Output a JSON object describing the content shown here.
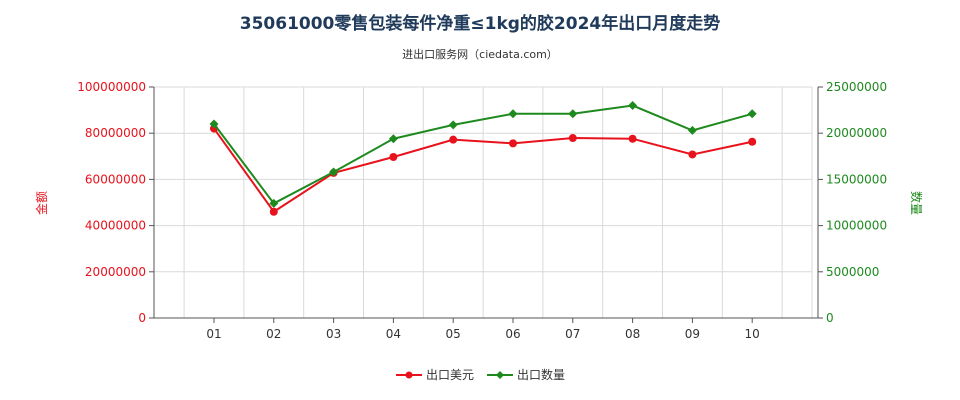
{
  "chart_data": {
    "type": "line",
    "title": "35061000零售包装每件净重≤1kg的胶2024年出口月度走势",
    "subtitle": "进出口服务网（ciedata.com）",
    "categories": [
      "01",
      "02",
      "03",
      "04",
      "05",
      "06",
      "07",
      "08",
      "09",
      "10"
    ],
    "series": [
      {
        "name": "出口美元",
        "axis": "left",
        "color": "#e8121c",
        "values": [
          82000000,
          46000000,
          62800000,
          69700000,
          77200000,
          75600000,
          77900000,
          77600000,
          70800000,
          76300000
        ]
      },
      {
        "name": "出口数量",
        "axis": "right",
        "color": "#1e8a1e",
        "values": [
          21000000,
          12400000,
          15800000,
          19400000,
          20900000,
          22100000,
          22100000,
          23000000,
          20300000,
          22100000
        ]
      }
    ],
    "left_axis": {
      "label": "金额",
      "ylim": [
        0,
        100000000
      ],
      "ticks": [
        "0",
        "20000000",
        "40000000",
        "60000000",
        "80000000",
        "100000000"
      ],
      "color": "#e8121c"
    },
    "right_axis": {
      "label": "数量",
      "ylim": [
        0,
        25000000
      ],
      "ticks": [
        "0",
        "5000000",
        "10000000",
        "15000000",
        "20000000",
        "25000000"
      ],
      "color": "#1e8a1e"
    },
    "legend_position": "bottom",
    "grid": true
  }
}
